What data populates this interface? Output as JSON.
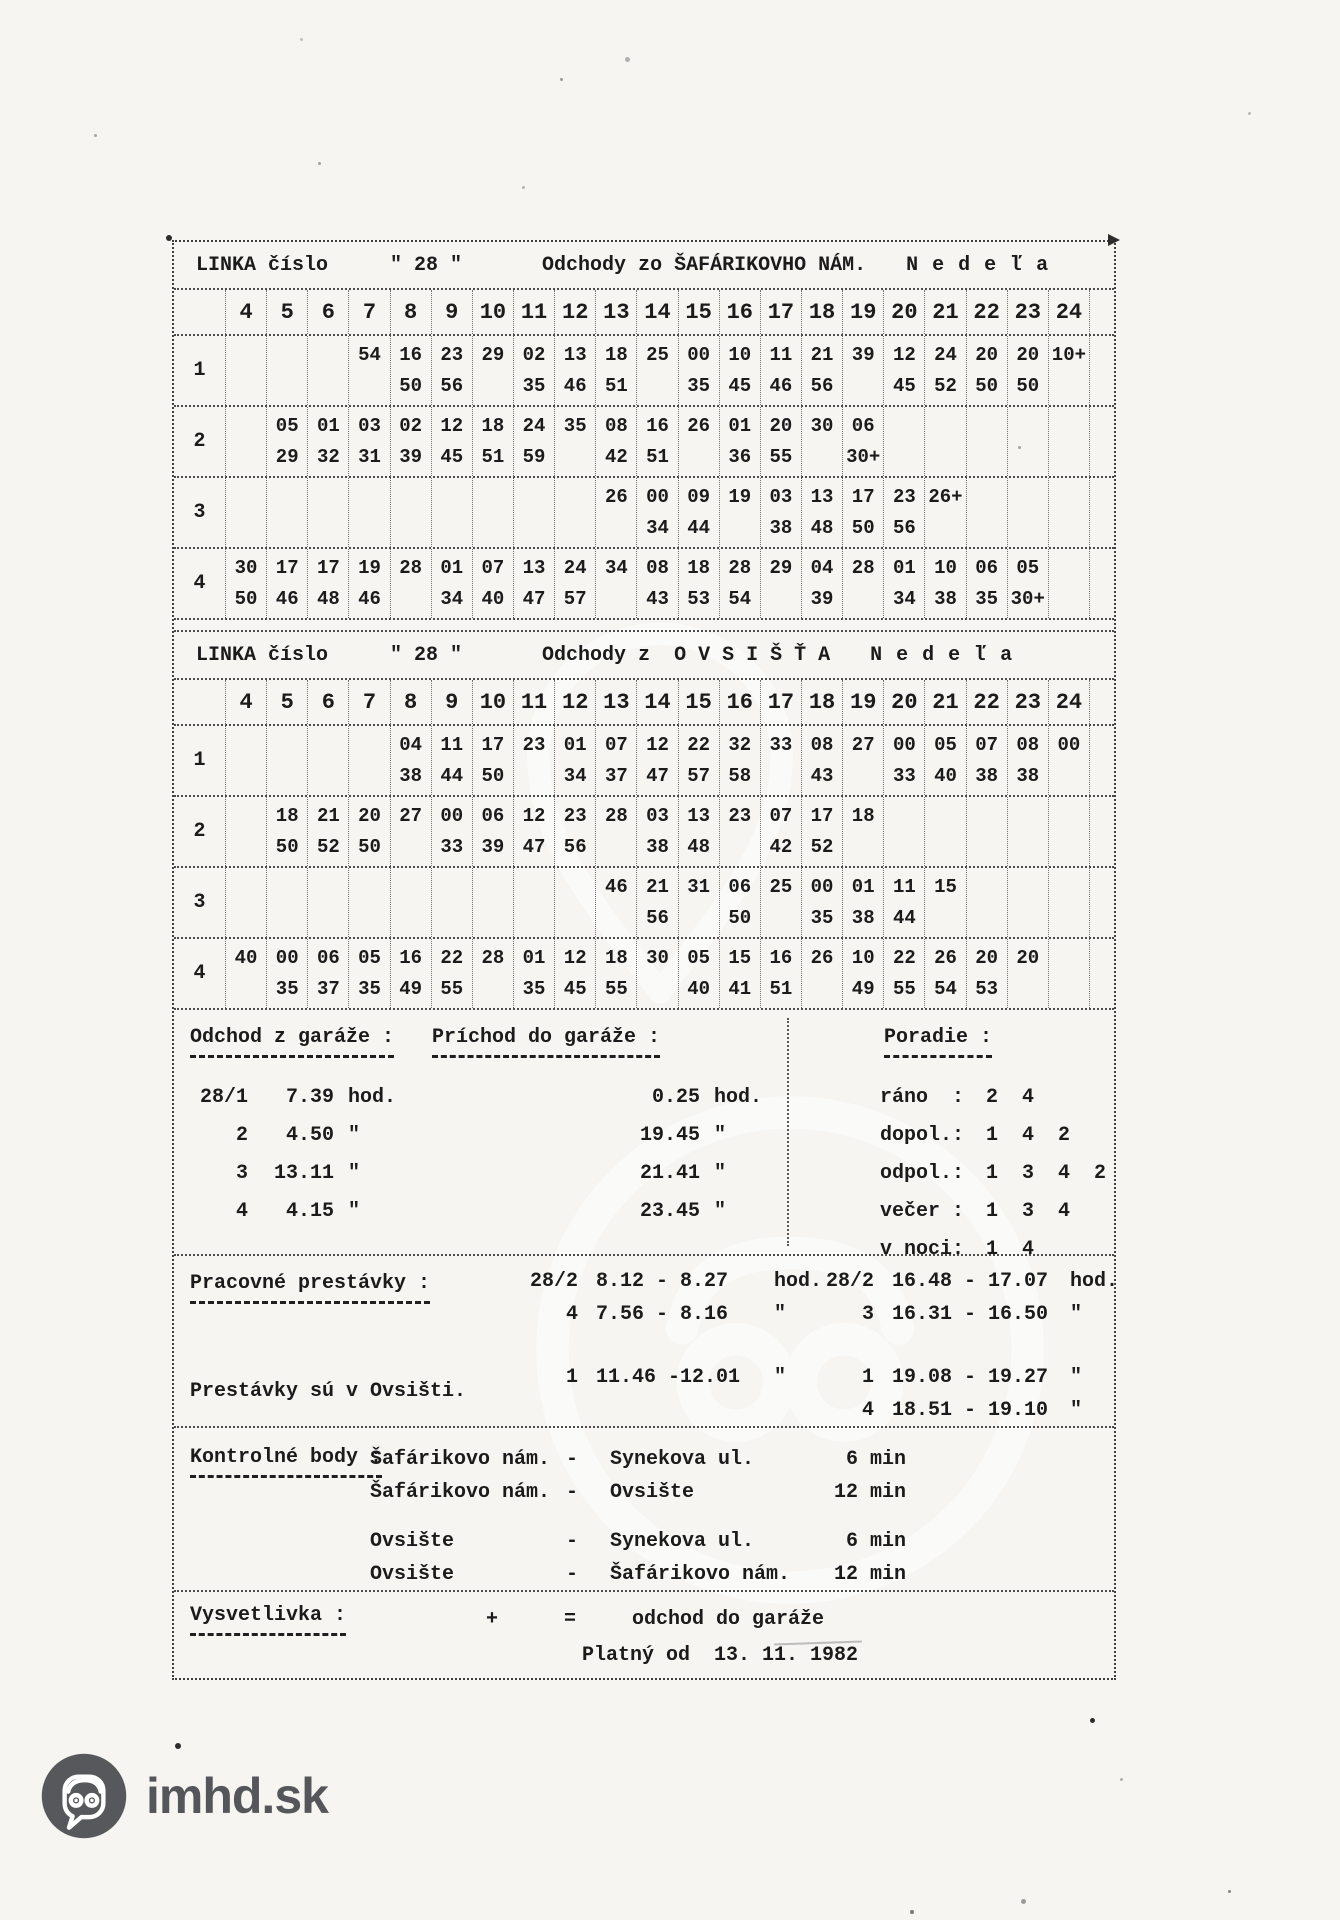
{
  "sheet": {
    "tables": [
      {
        "title": {
          "prefix": "LINKA číslo",
          "number": "\" 28 \"",
          "route": "Odchody zo ŠAFÁRIKOVHO NÁM.",
          "day": "N e d e ľ a"
        },
        "hours": [
          "4",
          "5",
          "6",
          "7",
          "8",
          "9",
          "10",
          "11",
          "12",
          "13",
          "14",
          "15",
          "16",
          "17",
          "18",
          "19",
          "20",
          "21",
          "22",
          "23",
          "24"
        ],
        "rows": [
          {
            "label": "1",
            "cells": [
              "",
              "",
              "",
              "54",
              "16/50",
              "23/56",
              "29",
              "02/35",
              "13/46",
              "18/51",
              "25",
              "00/35",
              "10/45",
              "11/46",
              "21/56",
              "39",
              "12/45",
              "24/52",
              "20/50",
              "20/50",
              "10+"
            ]
          },
          {
            "label": "2",
            "cells": [
              "",
              "05/29",
              "01/32",
              "03/31",
              "02/39",
              "12/45",
              "18/51",
              "24/59",
              "35",
              "08/42",
              "16/51",
              "26",
              "01/36",
              "20/55",
              "30",
              "06/30+",
              "",
              "",
              "",
              "",
              ""
            ]
          },
          {
            "label": "3",
            "cells": [
              "",
              "",
              "",
              "",
              "",
              "",
              "",
              "",
              "",
              "26",
              "00/34",
              "09/44",
              "19",
              "03/38",
              "13/48",
              "17/50",
              "23/56",
              "26+",
              "",
              "",
              ""
            ]
          },
          {
            "label": "4",
            "cells": [
              "30/50",
              "17/46",
              "17/48",
              "19/46",
              "28",
              "01/34",
              "07/40",
              "13/47",
              "24/57",
              "34",
              "08/43",
              "18/53",
              "28/54",
              "29",
              "04/39",
              "28",
              "01/34",
              "10/38",
              "06/35",
              "05/30+",
              ""
            ]
          }
        ]
      },
      {
        "title": {
          "prefix": "LINKA číslo",
          "number": "\" 28 \"",
          "route": "Odchody z  O V S I Š Ť A",
          "day": "N e d e ľ a"
        },
        "hours": [
          "4",
          "5",
          "6",
          "7",
          "8",
          "9",
          "10",
          "11",
          "12",
          "13",
          "14",
          "15",
          "16",
          "17",
          "18",
          "19",
          "20",
          "21",
          "22",
          "23",
          "24"
        ],
        "rows": [
          {
            "label": "1",
            "cells": [
              "",
              "",
              "",
              "",
              "04/38",
              "11/44",
              "17/50",
              "23",
              "01/34",
              "07/37",
              "12/47",
              "22/57",
              "32/58",
              "33",
              "08/43",
              "27",
              "00/33",
              "05/40",
              "07/38",
              "08/38",
              "00"
            ]
          },
          {
            "label": "2",
            "cells": [
              "",
              "18/50",
              "21/52",
              "20/50",
              "27",
              "00/33",
              "06/39",
              "12/47",
              "23/56",
              "28",
              "03/38",
              "13/48",
              "23",
              "07/42",
              "17/52",
              "18",
              "",
              "",
              "",
              "",
              ""
            ]
          },
          {
            "label": "3",
            "cells": [
              "",
              "",
              "",
              "",
              "",
              "",
              "",
              "",
              "",
              "46",
              "21/56",
              "31",
              "06/50",
              "25",
              "00/35",
              "01/38",
              "11/44",
              "15",
              "",
              "",
              ""
            ]
          },
          {
            "label": "4",
            "cells": [
              "40",
              "00/35",
              "06/37",
              "05/35",
              "16/49",
              "22/55",
              "28",
              "01/35",
              "12/45",
              "18/55",
              "30",
              "05/40",
              "15/41",
              "16/51",
              "26",
              "10/49",
              "22/55",
              "26/54",
              "20/53",
              "20",
              ""
            ]
          }
        ]
      }
    ],
    "garage": {
      "departure": {
        "heading": "Odchod z garáže :",
        "rows": [
          [
            "28/1",
            "7.39",
            "hod."
          ],
          [
            "2",
            "4.50",
            "\""
          ],
          [
            "3",
            "13.11",
            "\""
          ],
          [
            "4",
            "4.15",
            "\""
          ]
        ]
      },
      "arrival": {
        "heading": "Príchod do garáže :",
        "rows": [
          [
            "0.25",
            "hod."
          ],
          [
            "19.45",
            "\""
          ],
          [
            "21.41",
            "\""
          ],
          [
            "23.45",
            "\""
          ]
        ]
      },
      "order": {
        "heading": "Poradie :",
        "rows": [
          [
            "ráno  :",
            "2  4"
          ],
          [
            "dopol.:",
            "1  4  2"
          ],
          [
            "odpol.:",
            "1  3  4  2"
          ],
          [
            "večer :",
            "1  3  4"
          ],
          [
            "v noci:",
            "1  4"
          ]
        ]
      }
    },
    "breaks": {
      "heading": "Pracovné prestávky :",
      "left": [
        [
          "28/2",
          "8.12 - 8.27",
          "hod."
        ],
        [
          "4",
          "7.56 - 8.16",
          "\""
        ],
        null,
        [
          "1",
          "11.46 -12.01",
          "\""
        ]
      ],
      "right": [
        [
          "28/2",
          "16.48 - 17.07",
          "hod."
        ],
        [
          "3",
          "16.31 - 16.50",
          "\""
        ],
        null,
        [
          "1",
          "19.08 - 19.27",
          "\""
        ],
        [
          "4",
          "18.51 - 19.10",
          "\""
        ]
      ],
      "note": "Prestávky sú v Ovsišti."
    },
    "control": {
      "heading": "Kontrolné body :",
      "rows": [
        [
          "Šafárikovo nám.",
          "-",
          "Synekova ul.",
          "6 min"
        ],
        [
          "Šafárikovo nám.",
          "-",
          "Ovsište",
          "12 min"
        ],
        null,
        [
          "Ovsište",
          "-",
          "Synekova ul.",
          "6 min"
        ],
        [
          "Ovsište",
          "-",
          "Šafárikovo nám.",
          "12 min"
        ]
      ]
    },
    "legend": {
      "heading": "Vysvetlivka :",
      "symbol": "+",
      "equals": "=",
      "text": "odchod do garáže",
      "validity": "Platný od  13. 11. 1982"
    }
  },
  "footer": {
    "logo_text": "imhd.sk",
    "brand_color": "#55565a",
    "icon": "bus-pin-icon"
  }
}
